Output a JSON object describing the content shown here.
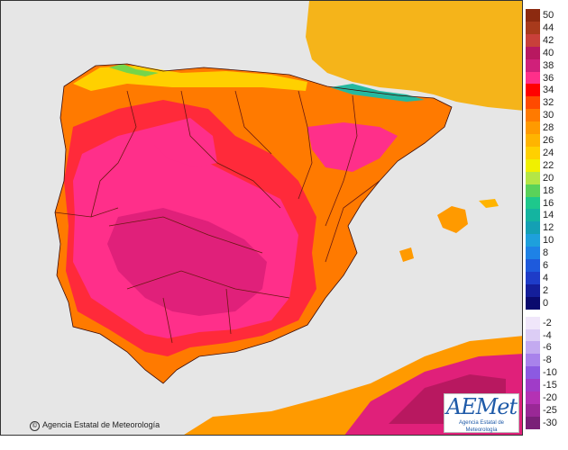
{
  "map": {
    "copyright": "Agencia Estatal de Meteorología",
    "logo": {
      "brand": "AEMet",
      "subtitle": "Agencia Estatal de Meteorología"
    },
    "colors": {
      "sea": "#e6e6e6",
      "land_outside": "#f5b41a",
      "temp_26": "#ff9a00",
      "temp_30": "#ff7a00",
      "temp_34": "#ff2a3a",
      "temp_36": "#ff2f8a",
      "temp_38": "#e0207a",
      "temp_40": "#b81860",
      "temp_20": "#76d54a",
      "temp_12": "#26b8a0",
      "yellow": "#ffd000"
    }
  },
  "legend": {
    "warm": [
      {
        "label": "50",
        "color": "#8c2a10"
      },
      {
        "label": "44",
        "color": "#a83a1c"
      },
      {
        "label": "42",
        "color": "#c8403a"
      },
      {
        "label": "40",
        "color": "#b81860"
      },
      {
        "label": "38",
        "color": "#d0207a"
      },
      {
        "label": "36",
        "color": "#ff2f8a"
      },
      {
        "label": "34",
        "color": "#ff0000"
      },
      {
        "label": "32",
        "color": "#ff4a00"
      },
      {
        "label": "30",
        "color": "#ff7a00"
      },
      {
        "label": "28",
        "color": "#ff9a00"
      },
      {
        "label": "26",
        "color": "#ffb400"
      },
      {
        "label": "24",
        "color": "#ffd000"
      },
      {
        "label": "22",
        "color": "#f0f000"
      },
      {
        "label": "20",
        "color": "#b4e646"
      },
      {
        "label": "18",
        "color": "#5ad25a"
      },
      {
        "label": "16",
        "color": "#1ec88c"
      },
      {
        "label": "14",
        "color": "#14b4a0"
      },
      {
        "label": "12",
        "color": "#14a0b4"
      },
      {
        "label": "10",
        "color": "#1ea0dc"
      },
      {
        "label": "8",
        "color": "#1e82e6"
      },
      {
        "label": "6",
        "color": "#1e5adc"
      },
      {
        "label": "4",
        "color": "#1e3cc8"
      },
      {
        "label": "2",
        "color": "#141e9a"
      },
      {
        "label": "0",
        "color": "#0a0a6e"
      }
    ],
    "cold": [
      {
        "label": "-2",
        "color": "#f0e6fa"
      },
      {
        "label": "-4",
        "color": "#dccdf5"
      },
      {
        "label": "-6",
        "color": "#c3aaf0"
      },
      {
        "label": "-8",
        "color": "#a882eb"
      },
      {
        "label": "-10",
        "color": "#8c5ae1"
      },
      {
        "label": "-15",
        "color": "#a03cc8"
      },
      {
        "label": "-20",
        "color": "#b432b4"
      },
      {
        "label": "-25",
        "color": "#9a2896"
      },
      {
        "label": "-30",
        "color": "#7a2078"
      }
    ]
  }
}
